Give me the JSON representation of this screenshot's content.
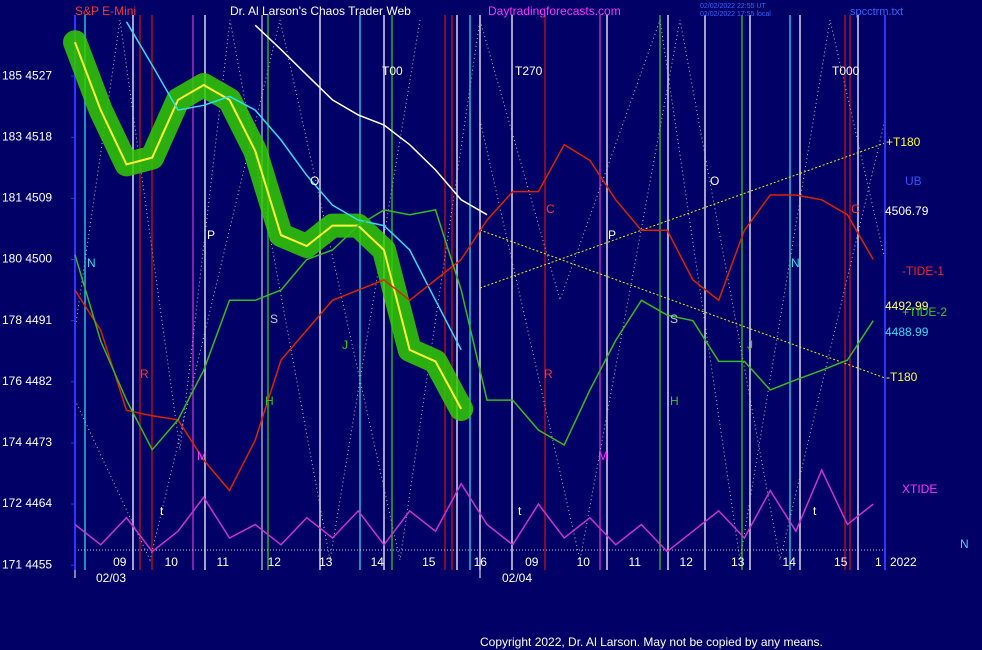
{
  "chart_data": {
    "type": "line",
    "title": "Dr. Al Larson's Chaos Trader Web",
    "instrument": "S&P E-Mini",
    "site": "Daytradingforecasts.com",
    "timestamps": [
      "02/02/2022 22:55 UT",
      "02/02/2022 17:55 local"
    ],
    "file": "spcctrm.txt",
    "copyright": "Copyright 2022, Dr. Al Larson. May not be copied by any means.",
    "dates": [
      "02/03",
      "02/04"
    ],
    "year": "2022",
    "xlim": [
      0,
      15.73
    ],
    "ylim": [
      4454,
      4536
    ],
    "x": [
      0,
      0.5,
      1,
      1.5,
      2,
      2.5,
      3,
      3.5,
      4,
      4.5,
      5,
      5.5,
      6,
      6.5,
      7,
      7.5,
      8,
      8.5,
      9,
      9.5,
      10,
      10.5,
      11,
      11.5,
      12,
      12.5,
      13,
      13.5,
      14,
      14.5,
      15,
      15.5
    ],
    "xticks": [
      {
        "value": 0.87,
        "label": "09"
      },
      {
        "value": 1.87,
        "label": "10"
      },
      {
        "value": 2.87,
        "label": "11"
      },
      {
        "value": 3.87,
        "label": "12"
      },
      {
        "value": 4.87,
        "label": "13"
      },
      {
        "value": 5.87,
        "label": "14"
      },
      {
        "value": 6.87,
        "label": "15"
      },
      {
        "value": 7.87,
        "label": "16"
      },
      {
        "value": 8.87,
        "label": "09"
      },
      {
        "value": 9.87,
        "label": "10"
      },
      {
        "value": 10.87,
        "label": "11"
      },
      {
        "value": 11.87,
        "label": "12"
      },
      {
        "value": 12.87,
        "label": "13"
      },
      {
        "value": 13.87,
        "label": "14"
      },
      {
        "value": 14.87,
        "label": "15"
      },
      {
        "value": 15.6,
        "label": "1"
      }
    ],
    "yticks": [
      {
        "value": 4455,
        "label": "171 4455"
      },
      {
        "value": 4464,
        "label": "172 4464"
      },
      {
        "value": 4473,
        "label": "174 4473"
      },
      {
        "value": 4482,
        "label": "176 4482"
      },
      {
        "value": 4491,
        "label": "178 4491"
      },
      {
        "value": 4500,
        "label": "180 4500"
      },
      {
        "value": 4509,
        "label": "181 4509"
      },
      {
        "value": 4518,
        "label": "183 4518"
      },
      {
        "value": 4527,
        "label": "185 4527"
      }
    ],
    "series": [
      {
        "color": "#ffff33",
        "glow": "#33cc00",
        "values": [
          4532,
          4522,
          4514,
          4515,
          4523.5,
          4525.7,
          4523.5,
          4516,
          4503.6,
          4502,
          4505,
          4505,
          4501.4,
          4486.7,
          4485,
          4478,
          null,
          null,
          null,
          null,
          null,
          null,
          null,
          null,
          null,
          null,
          null,
          null,
          null,
          null,
          null,
          null
        ]
      },
      {
        "color": "#33ddee",
        "values": [
          null,
          null,
          4535,
          4528.6,
          4522,
          4522.7,
          4524,
          4522,
          4517.6,
          4512.4,
          4508,
          4505.8,
          4505,
          4501.4,
          4494,
          4486.7,
          null,
          null,
          null,
          null,
          null,
          null,
          null,
          null,
          null,
          null,
          null,
          null,
          null,
          null,
          null,
          null
        ]
      },
      {
        "color": "#ffffff",
        "values": [
          null,
          null,
          null,
          null,
          null,
          null,
          null,
          4534.5,
          4530.9,
          4527.2,
          4523.5,
          4521.3,
          4519.8,
          4516.9,
          4513.2,
          4508.8,
          4506.6,
          null,
          null,
          null,
          null,
          null,
          null,
          null,
          null,
          null,
          null,
          null,
          null,
          null,
          null,
          null
        ]
      },
      {
        "name": "-TIDE-1",
        "color": "#dd2200",
        "values": [
          4495.5,
          4489.6,
          4477.8,
          4477,
          4476.4,
          4470.5,
          4466,
          4473.4,
          4485.2,
          4489.6,
          4494,
          4495.5,
          4497,
          4494,
          4497,
          4500,
          4505.8,
          4510,
          4510,
          4516.9,
          4514.6,
          4508.8,
          4504.3,
          4504.3,
          4497,
          4494,
          4504.3,
          4509.5,
          4509.5,
          4508.8,
          4506.6,
          4500
        ]
      },
      {
        "name": "+TIDE-2",
        "color": "#33bb22",
        "values": [
          4500.7,
          4488,
          4479.3,
          4472,
          4476.4,
          4483.7,
          4494,
          4494,
          4495.5,
          4500,
          4501.4,
          4505,
          4507.3,
          4506.6,
          4507.3,
          4495.5,
          4479.3,
          4479.3,
          4474.9,
          4472.7,
          4480.8,
          4488.1,
          4494,
          4491.8,
          4491,
          4485,
          4485,
          4480.8,
          4482.3,
          4483.7,
          4485.2,
          4491
        ]
      },
      {
        "name": "XTIDE",
        "color": "#cc33cc",
        "values": [
          4461,
          4458,
          4462,
          4457,
          4460,
          4465,
          4459,
          4461,
          4458,
          4462,
          4459,
          4463,
          4458,
          4463,
          4460,
          4467,
          4461,
          4458,
          4464,
          4459,
          4462,
          4458,
          4461,
          4457,
          4460,
          4463,
          4459,
          4466,
          4460,
          4469,
          4461,
          4464
        ]
      }
    ],
    "right_labels": [
      "+T180",
      "UB",
      "-T180",
      "N"
    ],
    "last_values": [
      4506.79,
      4492.99,
      4488.99
    ],
    "annotations": [
      "T00",
      "T270",
      "T000",
      "O",
      "O",
      "P",
      "P",
      "C",
      "C",
      "N",
      "N",
      "S",
      "S",
      "J",
      "J",
      "R",
      "R",
      "H",
      "H",
      "M",
      "M",
      "t",
      "t",
      "t"
    ]
  }
}
